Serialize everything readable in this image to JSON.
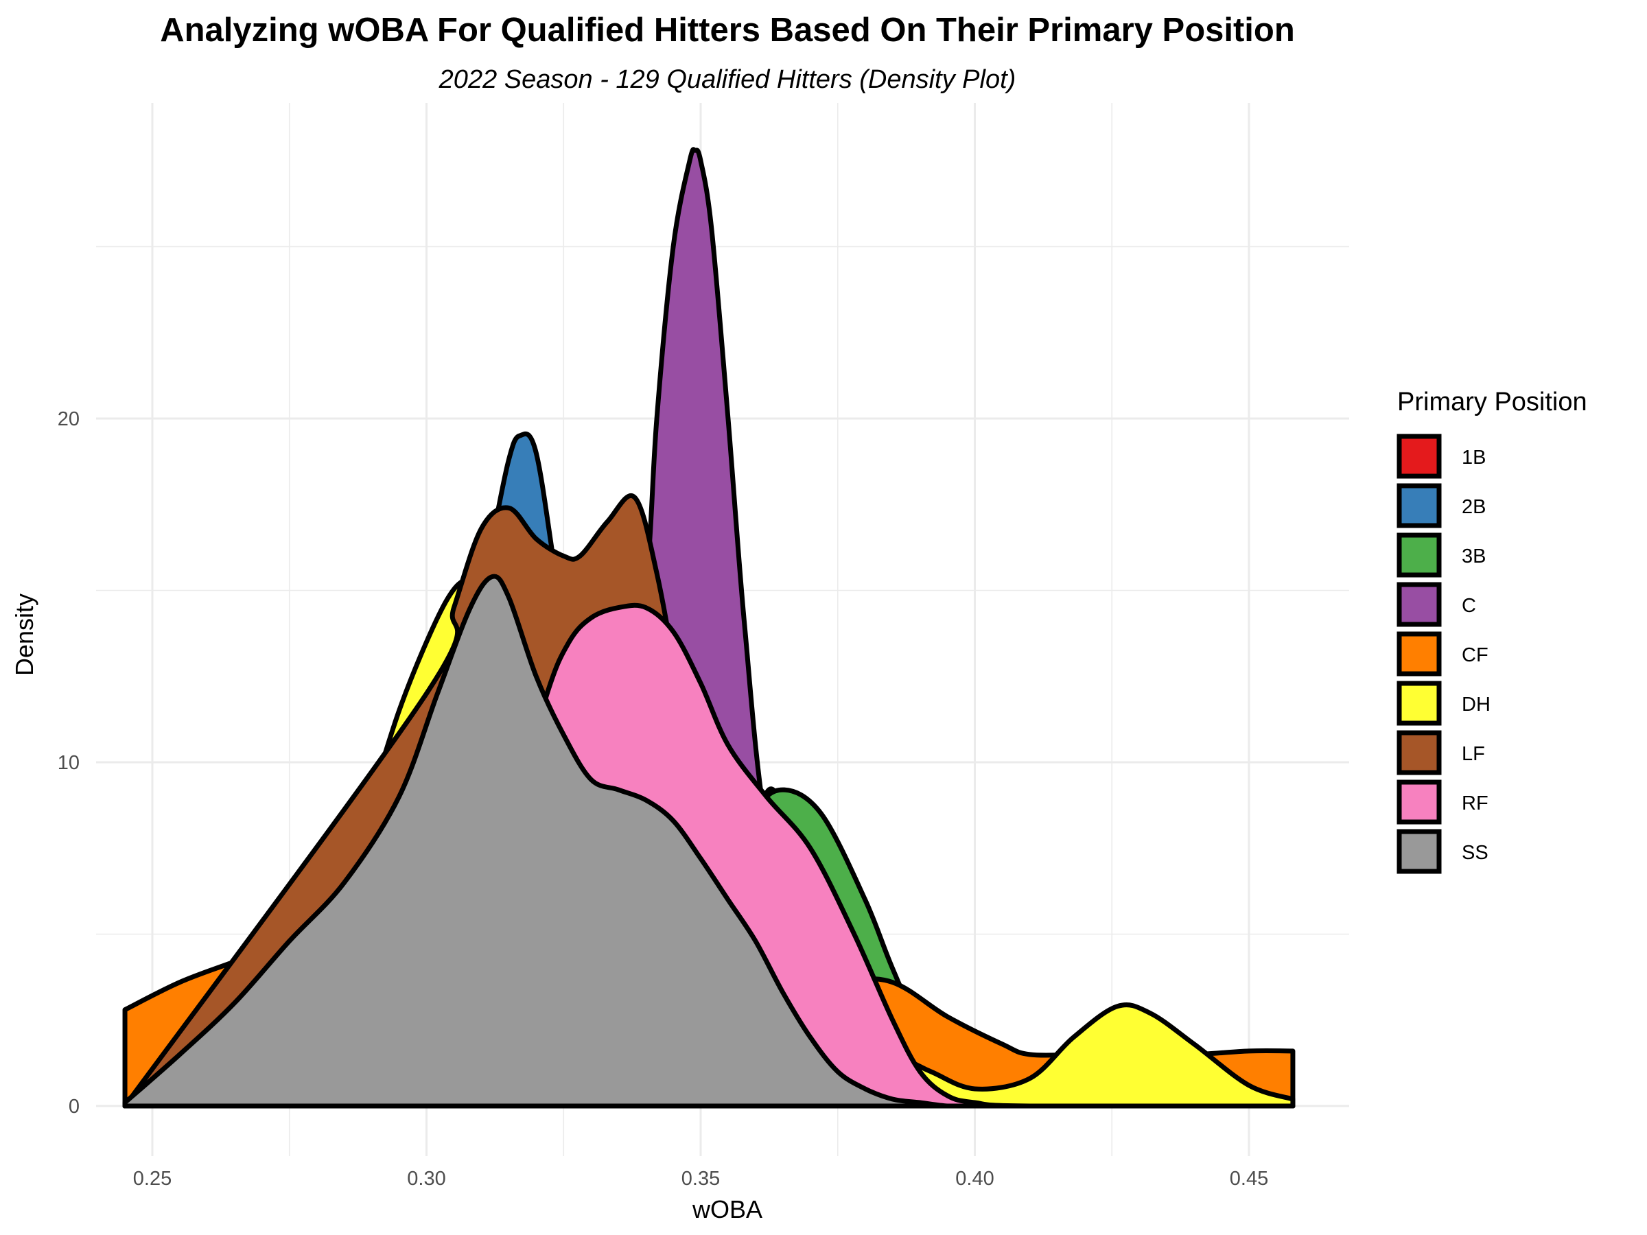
{
  "chart_data": {
    "type": "area",
    "title": "Analyzing wOBA For Qualified Hitters Based On Their Primary Position",
    "subtitle": "2022 Season - 129 Qualified Hitters (Density Plot)",
    "xlabel": "wOBA",
    "ylabel": "Density",
    "xlim": [
      0.245,
      0.458
    ],
    "ylim": [
      0,
      27.5
    ],
    "xticks": [
      0.25,
      0.3,
      0.35,
      0.4,
      0.45
    ],
    "xtick_labels": [
      "0.25",
      "0.30",
      "0.35",
      "0.40",
      "0.45"
    ],
    "yticks": [
      0,
      10,
      20
    ],
    "ytick_labels": [
      "0",
      "10",
      "20"
    ],
    "grid": true,
    "legend": {
      "title": "Primary Position",
      "placement": "right"
    },
    "series": [
      {
        "name": "1B",
        "color": "#e41a1c",
        "x": [
          0.245,
          0.3,
          0.34,
          0.355,
          0.36,
          0.364,
          0.368,
          0.372,
          0.38,
          0.4,
          0.458
        ],
        "y": [
          0,
          0,
          0,
          2,
          8,
          9,
          5,
          1,
          0,
          0,
          0
        ]
      },
      {
        "name": "2B",
        "color": "#377eb8",
        "x": [
          0.245,
          0.27,
          0.276,
          0.28,
          0.284,
          0.288,
          0.295,
          0.305,
          0.312,
          0.315,
          0.317,
          0.32,
          0.324,
          0.33,
          0.34,
          0.36,
          0.458
        ],
        "y": [
          0,
          0.2,
          3,
          6,
          7.2,
          7.5,
          6.2,
          11,
          16.5,
          18.8,
          19.5,
          19,
          15,
          9,
          3,
          0,
          0
        ]
      },
      {
        "name": "3B",
        "color": "#4daf4a",
        "x": [
          0.245,
          0.33,
          0.345,
          0.355,
          0.36,
          0.365,
          0.372,
          0.38,
          0.385,
          0.392,
          0.397,
          0.4,
          0.41,
          0.458
        ],
        "y": [
          0,
          0,
          2,
          6,
          8.5,
          9.2,
          8.5,
          6,
          4,
          1.5,
          0.5,
          0.2,
          0,
          0
        ]
      },
      {
        "name": "C",
        "color": "#984ea3",
        "x": [
          0.245,
          0.32,
          0.335,
          0.34,
          0.342,
          0.345,
          0.348,
          0.349,
          0.35,
          0.352,
          0.355,
          0.358,
          0.362,
          0.37,
          0.38,
          0.458
        ],
        "y": [
          0,
          0,
          8,
          15,
          20,
          25,
          27.5,
          27.8,
          27.5,
          25.5,
          20,
          14,
          8,
          2,
          0,
          0
        ]
      },
      {
        "name": "CF",
        "color": "#ff7f00",
        "x": [
          0.245,
          0.255,
          0.265,
          0.275,
          0.285,
          0.295,
          0.305,
          0.315,
          0.325,
          0.335,
          0.345,
          0.355,
          0.365,
          0.375,
          0.385,
          0.395,
          0.405,
          0.41,
          0.42,
          0.43,
          0.44,
          0.45,
          0.458
        ],
        "y": [
          2.8,
          3.6,
          4.2,
          4.8,
          5,
          4.8,
          4.5,
          4.3,
          4.2,
          4.1,
          4,
          3.9,
          3.8,
          3.7,
          3.6,
          2.6,
          1.8,
          1.5,
          1.5,
          1.5,
          1.5,
          1.6,
          1.6
        ]
      },
      {
        "name": "DH",
        "color": "#ffff33",
        "x": [
          0.245,
          0.28,
          0.285,
          0.29,
          0.295,
          0.3,
          0.304,
          0.307,
          0.31,
          0.312,
          0.315,
          0.32,
          0.33,
          0.36,
          0.385,
          0.392,
          0.4,
          0.41,
          0.418,
          0.426,
          0.432,
          0.44,
          0.45,
          0.458
        ],
        "y": [
          0,
          0,
          6.5,
          9,
          11.5,
          13.5,
          14.8,
          15.3,
          15.2,
          14.7,
          13.5,
          12,
          9,
          3,
          1.5,
          1,
          0.5,
          0.8,
          2,
          2.9,
          2.7,
          1.8,
          0.6,
          0.2
        ]
      },
      {
        "name": "LF",
        "color": "#a65628",
        "x": [
          0.245,
          0.3,
          0.305,
          0.31,
          0.315,
          0.32,
          0.325,
          0.328,
          0.333,
          0.338,
          0.342,
          0.346,
          0.35,
          0.355,
          0.362,
          0.37,
          0.458
        ],
        "y": [
          0,
          12,
          14.5,
          16.8,
          17.4,
          16.5,
          16,
          16,
          17,
          17.7,
          15.5,
          12,
          8,
          5,
          2,
          0,
          0
        ]
      },
      {
        "name": "RF",
        "color": "#f781bf",
        "x": [
          0.245,
          0.3,
          0.315,
          0.322,
          0.326,
          0.33,
          0.335,
          0.34,
          0.345,
          0.35,
          0.355,
          0.362,
          0.37,
          0.378,
          0.385,
          0.39,
          0.395,
          0.4,
          0.41,
          0.458
        ],
        "y": [
          0,
          0,
          8,
          12,
          13.5,
          14.2,
          14.5,
          14.5,
          13.8,
          12.3,
          10.5,
          9,
          7.5,
          5,
          2.5,
          1,
          0.3,
          0.1,
          0,
          0
        ]
      },
      {
        "name": "SS",
        "color": "#999999",
        "x": [
          0.245,
          0.255,
          0.265,
          0.275,
          0.285,
          0.295,
          0.302,
          0.308,
          0.312,
          0.315,
          0.32,
          0.325,
          0.33,
          0.335,
          0.34,
          0.345,
          0.35,
          0.355,
          0.36,
          0.365,
          0.37,
          0.375,
          0.38,
          0.385,
          0.39,
          0.395,
          0.4,
          0.42,
          0.458
        ],
        "y": [
          0.1,
          1.5,
          3,
          4.8,
          6.5,
          9,
          12,
          14.5,
          15.4,
          14.8,
          12.5,
          10.8,
          9.5,
          9.2,
          8.9,
          8.3,
          7.2,
          6,
          4.8,
          3.3,
          2,
          1,
          0.5,
          0.2,
          0.1,
          0,
          0,
          0,
          0
        ]
      }
    ]
  }
}
